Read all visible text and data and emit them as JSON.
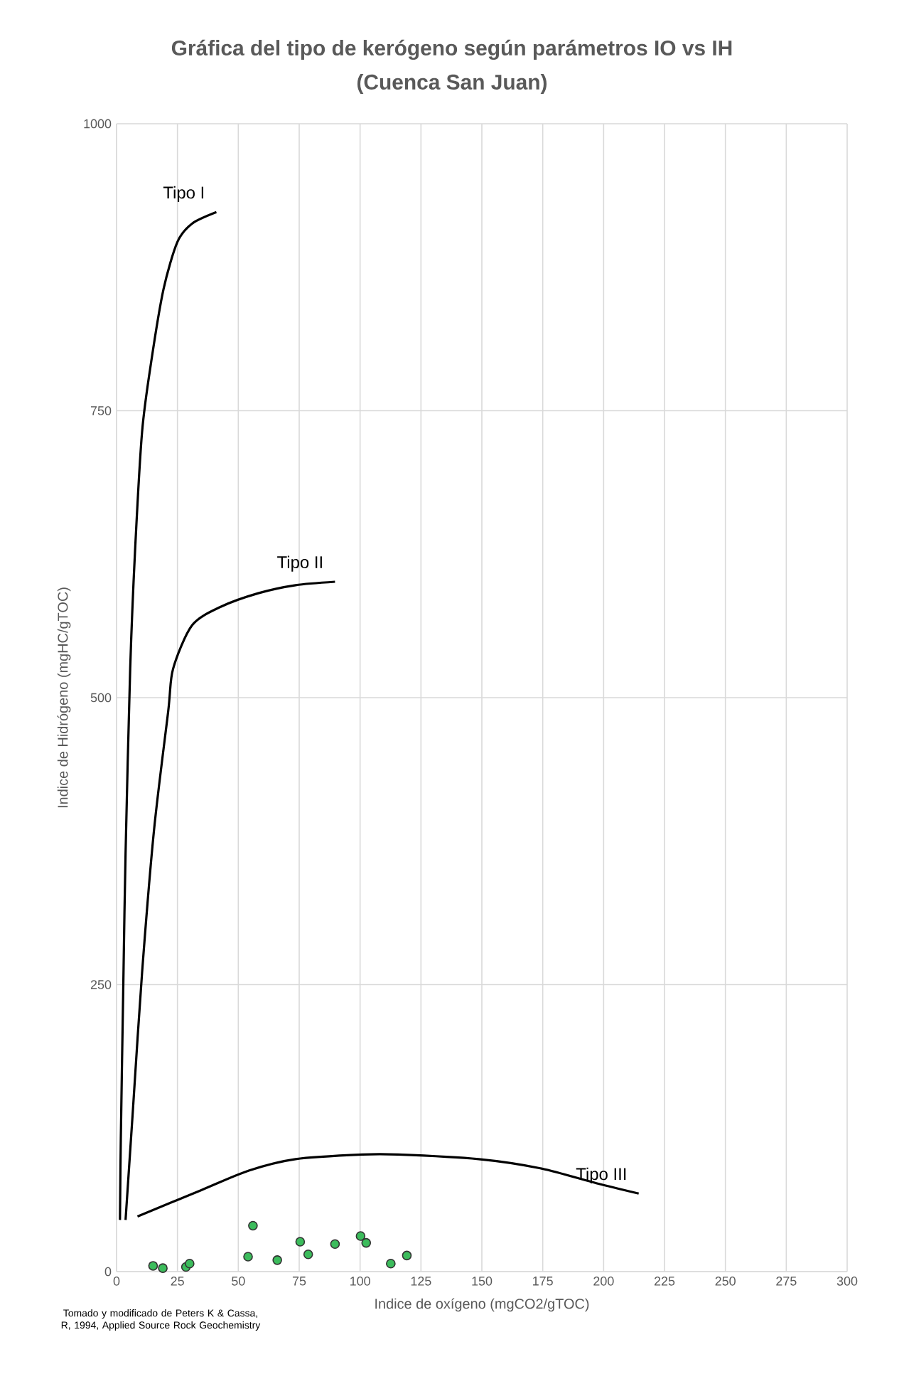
{
  "chart_data": {
    "type": "scatter",
    "title": "Gráfica del tipo de kerógeno según parámetros IO vs IH",
    "subtitle": "(Cuenca San Juan)",
    "xlabel": "Indice de oxígeno (mgCO2/gTOC)",
    "ylabel": "Indice de Hidrógeno (mgHC/gTOC)",
    "xlim": [
      0,
      300
    ],
    "ylim": [
      0,
      1000
    ],
    "xticks": [
      0,
      25,
      50,
      75,
      100,
      125,
      150,
      175,
      200,
      225,
      250,
      275,
      300
    ],
    "yticks": [
      0,
      250,
      500,
      750,
      1000
    ],
    "grid": true,
    "marker": "circle",
    "annotations": [
      "Tomado y modificado de Peters K & Cassa, R, 1994, Applied Source Rock Geochemistry"
    ],
    "series": [
      {
        "name": "Tipo I",
        "type": "line",
        "color": "#000000",
        "marker": "none",
        "x": [
          1.4,
          1.75,
          2.7,
          3.7,
          5.6,
          7.6,
          10.5,
          14.4,
          19.3,
          25,
          31,
          41
        ],
        "values": [
          45,
          116,
          240,
          364,
          525,
          628,
          732,
          795,
          856,
          897,
          913,
          923
        ]
      },
      {
        "name": "Tipo II",
        "type": "line",
        "color": "#000000",
        "marker": "none",
        "x": [
          3.7,
          6.6,
          10.5,
          15.4,
          21.2,
          23.2,
          31,
          42.6,
          58.2,
          73.5,
          89.7
        ],
        "values": [
          45,
          137,
          261,
          385,
          488,
          525,
          563,
          579,
          591,
          598,
          601
        ]
      },
      {
        "name": "Tipo III",
        "type": "line",
        "color": "#000000",
        "marker": "none",
        "x": [
          8.6,
          34.8,
          54.3,
          73.5,
          101,
          115.6,
          148.7,
          174,
          197,
          214.4
        ],
        "values": [
          48,
          71,
          88,
          98,
          102,
          102,
          98,
          90,
          77,
          68
        ]
      },
      {
        "type": "scatter",
        "color": "#3cbc5c",
        "x": [
          15,
          19,
          28.5,
          30,
          54,
          56,
          66,
          75.4,
          78.7,
          89.7,
          100.2,
          102.5,
          112.6,
          119.2
        ],
        "values": [
          5,
          3,
          4,
          7,
          13,
          40,
          10,
          26,
          15,
          24,
          31,
          25,
          7,
          14
        ]
      }
    ]
  }
}
